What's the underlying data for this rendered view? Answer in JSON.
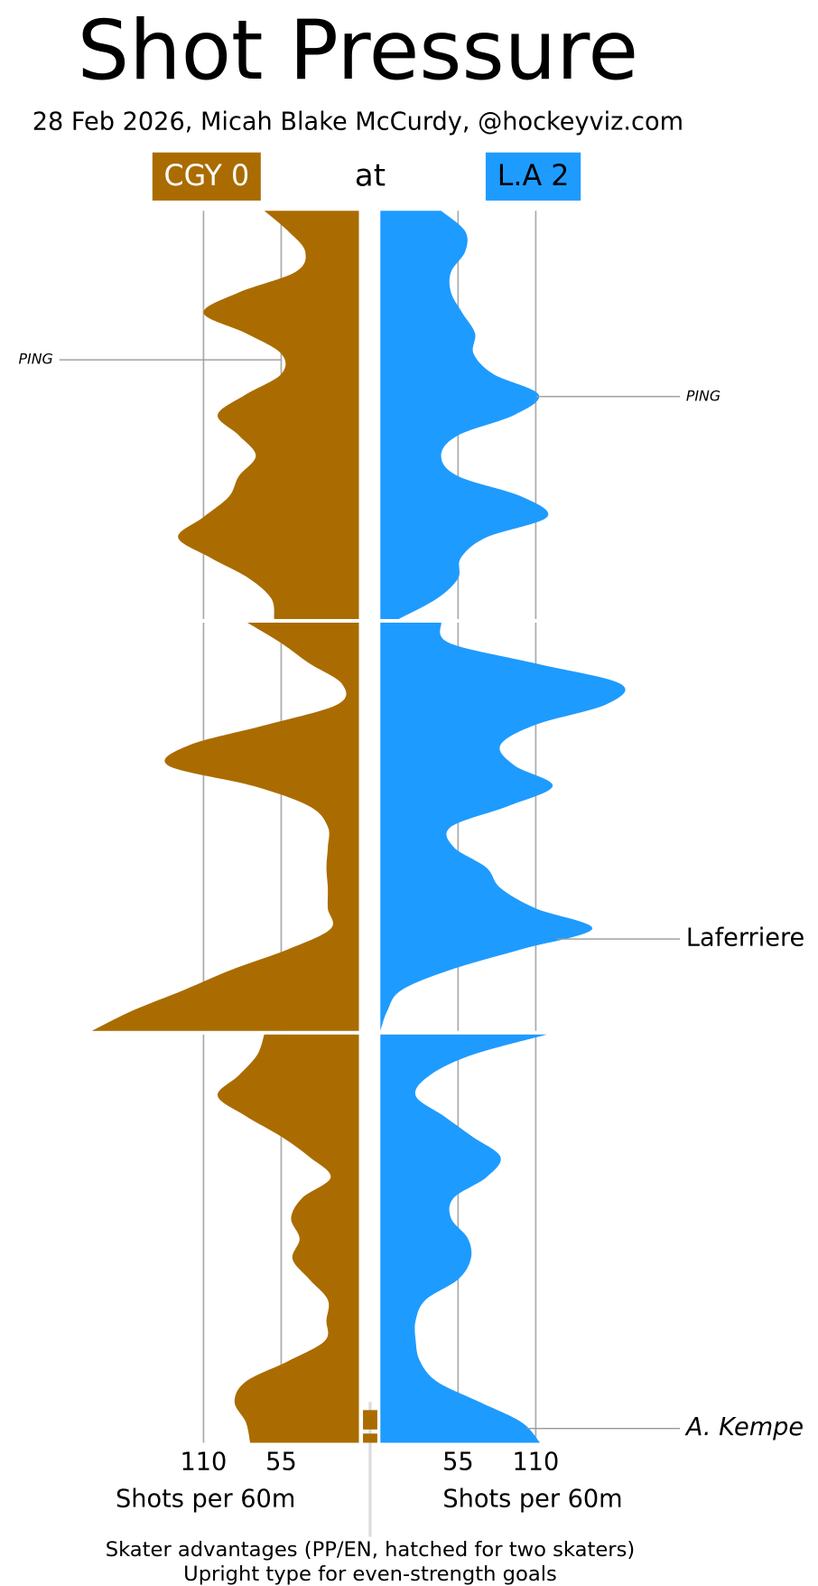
{
  "chart_data": {
    "type": "pressure",
    "title": "Shot Pressure",
    "subtitle": "28 Feb 2026, Micah Blake McCurdy, @hockeyviz.com",
    "connector": "at",
    "x": [
      0,
      1,
      2,
      3,
      4,
      5,
      6,
      7,
      8,
      9,
      10,
      11,
      12,
      13,
      14,
      15,
      16,
      17,
      18,
      19,
      20
    ],
    "xlim": [
      0,
      190
    ],
    "xticks": [
      55,
      110
    ],
    "axis_label": "Shots per 60m",
    "grid": true,
    "series": [
      {
        "name": "CGY 0",
        "color": "#aa6c00",
        "text_color": "#ffffff",
        "side": "left",
        "values": [
          [
            67,
            50,
            38,
            45,
            85,
            110,
            80,
            55,
            55,
            80,
            100,
            85,
            73,
            85,
            92,
            110,
            128,
            105,
            78,
            62,
            60
          ],
          [
            79,
            55,
            35,
            12,
            15,
            65,
            120,
            135,
            75,
            35,
            22,
            22,
            23,
            22,
            22,
            20,
            50,
            90,
            124,
            160,
            189
          ],
          [
            67,
            72,
            85,
            100,
            80,
            55,
            35,
            20,
            40,
            48,
            42,
            47,
            35,
            22,
            23,
            24,
            50,
            80,
            88,
            80,
            77
          ]
        ]
      },
      {
        "name": "L.A 2",
        "color": "#1e9bff",
        "text_color": "#000000",
        "side": "right",
        "values": [
          [
            43,
            60,
            60,
            50,
            50,
            58,
            67,
            66,
            80,
            112,
            95,
            55,
            43,
            55,
            100,
            118,
            75,
            57,
            55,
            40,
            13
          ],
          [
            43,
            49,
            110,
            170,
            160,
            110,
            85,
            95,
            122,
            90,
            50,
            52,
            75,
            85,
            110,
            150,
            100,
            50,
            15,
            5,
            0
          ],
          [
            118,
            65,
            35,
            25,
            45,
            65,
            85,
            75,
            52,
            50,
            62,
            64,
            55,
            32,
            25,
            25,
            28,
            40,
            70,
            100,
            113
          ]
        ]
      }
    ],
    "annotations": [
      {
        "text": "PING",
        "team": 0,
        "period": 1,
        "time": 7.3,
        "italic": true,
        "size": "small"
      },
      {
        "text": "PING",
        "team": 1,
        "period": 1,
        "time": 9.1,
        "italic": true,
        "size": "small"
      },
      {
        "text": "Laferriere",
        "team": 1,
        "period": 2,
        "time": 15.5,
        "italic": false,
        "size": "large"
      },
      {
        "text": "A. Kempe",
        "team": 1,
        "period": 3,
        "time": 19.3,
        "italic": true,
        "size": "large"
      }
    ],
    "advantages": [
      {
        "team": 0,
        "period": 3,
        "start": 18.4,
        "end": 19.35
      },
      {
        "team": 0,
        "period": 3,
        "start": 19.55,
        "end": 20
      }
    ],
    "notes": [
      "Skater advantages (PP/EN, hatched for two skaters)",
      "Upright type for even-strength goals"
    ]
  }
}
